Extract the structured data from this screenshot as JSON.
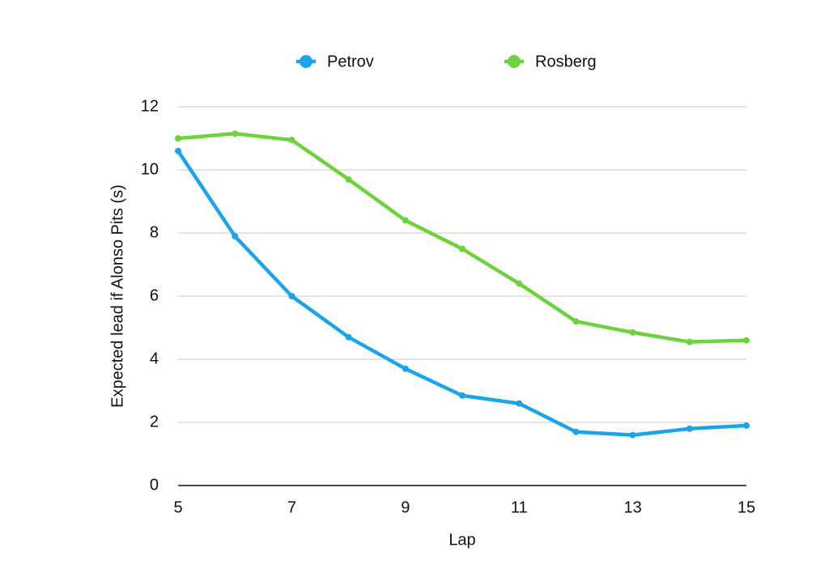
{
  "chart_data": {
    "type": "line",
    "x": [
      5,
      6,
      7,
      8,
      9,
      10,
      11,
      12,
      13,
      14,
      15
    ],
    "x_label": "Lap",
    "y_label": "Expected lead if Alonso Pits (s)",
    "series": [
      {
        "name": "Petrov",
        "color": "#1ba4ec",
        "values": [
          10.6,
          7.9,
          6.0,
          4.7,
          3.7,
          2.85,
          2.6,
          1.7,
          1.6,
          1.8,
          1.9
        ]
      },
      {
        "name": "Rosberg",
        "color": "#6cd33c",
        "values": [
          11.0,
          11.15,
          10.95,
          9.7,
          8.4,
          7.5,
          6.4,
          5.2,
          4.85,
          4.55,
          4.6
        ]
      }
    ],
    "xlim": [
      5,
      15
    ],
    "xticks": [
      5,
      7,
      9,
      11,
      13,
      15
    ],
    "ylim": [
      0,
      12
    ],
    "yticks": [
      0,
      2,
      4,
      6,
      8,
      10,
      12
    ],
    "grid": true,
    "legend": "top"
  }
}
